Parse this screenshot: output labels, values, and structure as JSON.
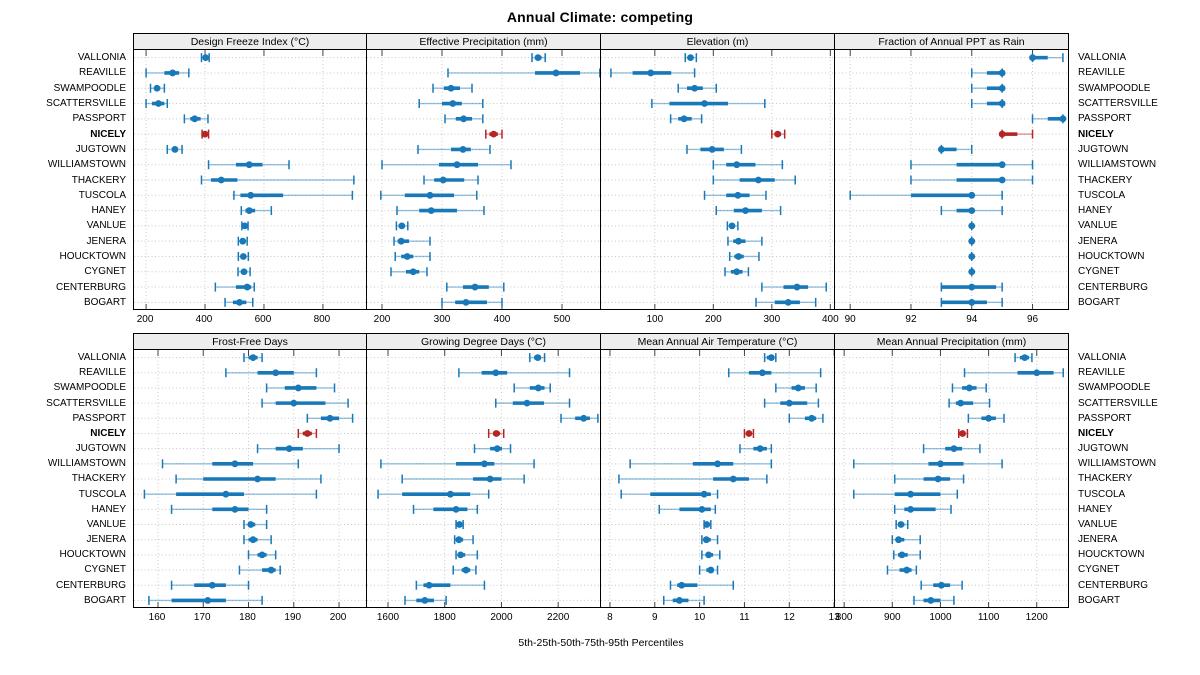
{
  "chart_data": {
    "type": "dotplot-trellis",
    "title": "Annual Climate: competing",
    "xlabel": "5th-25th-50th-75th-95th Percentiles",
    "percentiles": [
      "5th",
      "25th",
      "50th",
      "75th",
      "95th"
    ],
    "legend_position": "none",
    "grid_style": "dotted",
    "sites": [
      "VALLONIA",
      "REAVILLE",
      "SWAMPOODLE",
      "SCATTERSVILLE",
      "PASSPORT",
      "NICELY",
      "JUGTOWN",
      "WILLIAMSTOWN",
      "THACKERY",
      "TUSCOLA",
      "HANEY",
      "VANLUE",
      "JENERA",
      "HOUCKTOWN",
      "CYGNET",
      "CENTERBURG",
      "BOGART"
    ],
    "highlight_site": "NICELY",
    "colors": {
      "series": "#1878b8",
      "series_light_alpha": 0.45,
      "highlight": "#b52525",
      "grid": "#c9c9c9",
      "strip_bg": "#ededed",
      "border": "#000000",
      "tick": "#444444"
    },
    "panels": [
      {
        "title": "Design Freeze Index (°C)",
        "row": 0,
        "col": 0,
        "xlim": [
          159,
          953
        ],
        "ticks": [
          200,
          400,
          600,
          800
        ],
        "values": [
          [
            388,
            396,
            402,
            408,
            414
          ],
          [
            200,
            262,
            290,
            312,
            345
          ],
          [
            215,
            228,
            237,
            248,
            262
          ],
          [
            200,
            220,
            242,
            262,
            272
          ],
          [
            330,
            350,
            365,
            385,
            410
          ],
          [
            390,
            395,
            400,
            406,
            412
          ],
          [
            272,
            287,
            298,
            308,
            322
          ],
          [
            412,
            505,
            550,
            595,
            685
          ],
          [
            388,
            420,
            455,
            510,
            905
          ],
          [
            498,
            520,
            555,
            665,
            900
          ],
          [
            523,
            537,
            550,
            570,
            625
          ],
          [
            525,
            530,
            535,
            540,
            546
          ],
          [
            513,
            520,
            528,
            536,
            543
          ],
          [
            513,
            521,
            530,
            539,
            547
          ],
          [
            512,
            522,
            532,
            543,
            553
          ],
          [
            435,
            505,
            543,
            557,
            567
          ],
          [
            468,
            495,
            517,
            540,
            562
          ]
        ]
      },
      {
        "title": "Effective Precipitation (mm)",
        "row": 0,
        "col": 1,
        "xlim": [
          175,
          565
        ],
        "ticks": [
          200,
          300,
          400,
          500
        ],
        "values": [
          [
            450,
            455,
            460,
            466,
            472
          ],
          [
            310,
            455,
            490,
            530,
            563
          ],
          [
            285,
            303,
            315,
            330,
            350
          ],
          [
            262,
            300,
            318,
            333,
            368
          ],
          [
            305,
            323,
            336,
            350,
            368
          ],
          [
            373,
            379,
            386,
            393,
            400
          ],
          [
            260,
            315,
            335,
            348,
            380
          ],
          [
            200,
            295,
            325,
            360,
            415
          ],
          [
            270,
            287,
            302,
            337,
            360
          ],
          [
            198,
            238,
            280,
            320,
            358
          ],
          [
            225,
            262,
            282,
            325,
            370
          ],
          [
            224,
            228,
            233,
            238,
            243
          ],
          [
            220,
            226,
            232,
            245,
            280
          ],
          [
            222,
            232,
            242,
            252,
            280
          ],
          [
            215,
            240,
            252,
            262,
            275
          ],
          [
            308,
            335,
            355,
            378,
            403
          ],
          [
            300,
            322,
            340,
            375,
            400
          ]
        ]
      },
      {
        "title": "Elevation (m)",
        "row": 0,
        "col": 2,
        "xlim": [
          8,
          408
        ],
        "ticks": [
          100,
          200,
          300,
          400
        ],
        "values": [
          [
            152,
            156,
            161,
            166,
            171
          ],
          [
            25,
            62,
            93,
            128,
            168
          ],
          [
            140,
            155,
            168,
            182,
            205
          ],
          [
            95,
            125,
            185,
            225,
            288
          ],
          [
            127,
            140,
            150,
            163,
            180
          ],
          [
            300,
            305,
            310,
            316,
            322
          ],
          [
            155,
            178,
            198,
            218,
            248
          ],
          [
            200,
            222,
            240,
            272,
            318
          ],
          [
            200,
            245,
            277,
            305,
            340
          ],
          [
            185,
            222,
            242,
            262,
            290
          ],
          [
            205,
            235,
            255,
            283,
            315
          ],
          [
            224,
            228,
            232,
            237,
            242
          ],
          [
            225,
            234,
            243,
            255,
            283
          ],
          [
            228,
            236,
            243,
            252,
            278
          ],
          [
            220,
            230,
            240,
            250,
            260
          ],
          [
            283,
            320,
            343,
            362,
            393
          ],
          [
            273,
            305,
            328,
            348,
            375
          ]
        ]
      },
      {
        "title": "Fraction of Annual PPT as Rain",
        "row": 0,
        "col": 3,
        "xlim": [
          89.5,
          97.2
        ],
        "ticks": [
          90,
          92,
          94,
          96
        ],
        "values": [
          [
            96,
            96,
            96,
            96.5,
            97
          ],
          [
            94,
            94.5,
            95,
            95,
            95
          ],
          [
            94,
            94.5,
            95,
            95,
            95
          ],
          [
            94,
            94.5,
            95,
            95,
            95
          ],
          [
            96,
            96.5,
            97,
            97,
            97
          ],
          [
            95,
            95,
            95,
            95.5,
            96
          ],
          [
            93,
            93,
            93,
            93.5,
            94
          ],
          [
            92,
            93.5,
            95,
            95,
            96
          ],
          [
            92,
            93.5,
            95,
            95,
            96
          ],
          [
            90,
            92,
            94,
            94,
            95
          ],
          [
            93,
            93.5,
            94,
            94,
            95
          ],
          [
            94,
            94,
            94,
            94,
            94
          ],
          [
            94,
            94,
            94,
            94,
            94
          ],
          [
            94,
            94,
            94,
            94,
            94
          ],
          [
            94,
            94,
            94,
            94,
            94
          ],
          [
            93,
            93,
            94,
            94.8,
            95
          ],
          [
            93,
            93,
            94,
            94.5,
            95
          ]
        ]
      },
      {
        "title": "Frost-Free Days",
        "row": 1,
        "col": 0,
        "xlim": [
          154.7,
          206.4
        ],
        "ticks": [
          160,
          170,
          180,
          190,
          200
        ],
        "values": [
          [
            179,
            180,
            181,
            182,
            183
          ],
          [
            175,
            182,
            186,
            190,
            195
          ],
          [
            184,
            188,
            191,
            195,
            199
          ],
          [
            183,
            186,
            190,
            197,
            202
          ],
          [
            193,
            196,
            198,
            200,
            203
          ],
          [
            191,
            192,
            193,
            194,
            195
          ],
          [
            182,
            186,
            189,
            192,
            200
          ],
          [
            161,
            172,
            177,
            181,
            191
          ],
          [
            164,
            170,
            182,
            186,
            196
          ],
          [
            157,
            164,
            175,
            179,
            195
          ],
          [
            163,
            172,
            177,
            180,
            184
          ],
          [
            179,
            180,
            180.5,
            181.5,
            184
          ],
          [
            179,
            180,
            181,
            182,
            185
          ],
          [
            180,
            182,
            183,
            184,
            186
          ],
          [
            178,
            183,
            185,
            186,
            187
          ],
          [
            163,
            168,
            172,
            175,
            180
          ],
          [
            158,
            163,
            171,
            175,
            183
          ]
        ]
      },
      {
        "title": "Growing Degree Days (°C)",
        "row": 1,
        "col": 1,
        "xlim": [
          1526,
          2351
        ],
        "ticks": [
          1600,
          1800,
          2000,
          2200
        ],
        "values": [
          [
            2100,
            2115,
            2128,
            2140,
            2152
          ],
          [
            1850,
            1930,
            1980,
            2020,
            2240
          ],
          [
            2045,
            2100,
            2130,
            2152,
            2172
          ],
          [
            1980,
            2040,
            2090,
            2150,
            2240
          ],
          [
            2210,
            2260,
            2290,
            2312,
            2340
          ],
          [
            1955,
            1970,
            1982,
            1995,
            2008
          ],
          [
            1905,
            1960,
            1985,
            2002,
            2032
          ],
          [
            1575,
            1840,
            1940,
            1975,
            2115
          ],
          [
            1650,
            1900,
            1960,
            2000,
            2080
          ],
          [
            1565,
            1650,
            1820,
            1890,
            1955
          ],
          [
            1690,
            1760,
            1840,
            1880,
            1915
          ],
          [
            1840,
            1846,
            1852,
            1858,
            1865
          ],
          [
            1835,
            1842,
            1850,
            1865,
            1900
          ],
          [
            1840,
            1848,
            1856,
            1872,
            1915
          ],
          [
            1830,
            1860,
            1875,
            1890,
            1910
          ],
          [
            1700,
            1725,
            1745,
            1820,
            1940
          ],
          [
            1660,
            1700,
            1730,
            1762,
            1805
          ]
        ]
      },
      {
        "title": "Mean Annual Air Temperature (°C)",
        "row": 1,
        "col": 2,
        "xlim": [
          7.8,
          13.02
        ],
        "ticks": [
          8,
          9,
          10,
          11,
          12,
          13
        ],
        "values": [
          [
            11.45,
            11.5,
            11.6,
            11.65,
            11.7
          ],
          [
            10.65,
            11.1,
            11.4,
            11.6,
            12.7
          ],
          [
            11.7,
            12.05,
            12.2,
            12.35,
            12.6
          ],
          [
            11.45,
            11.8,
            12.0,
            12.4,
            12.65
          ],
          [
            12.0,
            12.35,
            12.5,
            12.6,
            12.75
          ],
          [
            11.0,
            11.05,
            11.1,
            11.15,
            11.2
          ],
          [
            10.9,
            11.2,
            11.35,
            11.5,
            11.6
          ],
          [
            8.45,
            9.85,
            10.4,
            10.75,
            11.6
          ],
          [
            8.2,
            10.3,
            10.75,
            11.1,
            11.5
          ],
          [
            8.25,
            8.9,
            10.1,
            10.25,
            10.4
          ],
          [
            9.1,
            9.55,
            10.05,
            10.25,
            10.35
          ],
          [
            10.1,
            10.12,
            10.16,
            10.2,
            10.25
          ],
          [
            10.05,
            10.1,
            10.15,
            10.25,
            10.4
          ],
          [
            10.05,
            10.15,
            10.2,
            10.3,
            10.45
          ],
          [
            10.0,
            10.15,
            10.25,
            10.3,
            10.4
          ],
          [
            9.35,
            9.5,
            9.6,
            9.95,
            10.75
          ],
          [
            9.2,
            9.4,
            9.55,
            9.75,
            10.1
          ]
        ]
      },
      {
        "title": "Mean Annual Precipitation (mm)",
        "row": 1,
        "col": 3,
        "xlim": [
          781,
          1267
        ],
        "ticks": [
          800,
          900,
          1000,
          1100,
          1200
        ],
        "values": [
          [
            1155,
            1165,
            1175,
            1184,
            1190
          ],
          [
            1050,
            1160,
            1200,
            1235,
            1255
          ],
          [
            1025,
            1045,
            1060,
            1075,
            1095
          ],
          [
            1018,
            1032,
            1042,
            1068,
            1102
          ],
          [
            1058,
            1085,
            1100,
            1115,
            1132
          ],
          [
            1038,
            1042,
            1046,
            1051,
            1056
          ],
          [
            965,
            1010,
            1028,
            1045,
            1082
          ],
          [
            820,
            975,
            1000,
            1048,
            1128
          ],
          [
            905,
            965,
            995,
            1020,
            1048
          ],
          [
            820,
            905,
            938,
            1000,
            1035
          ],
          [
            905,
            925,
            938,
            990,
            1022
          ],
          [
            908,
            913,
            918,
            925,
            932
          ],
          [
            900,
            907,
            913,
            925,
            958
          ],
          [
            903,
            912,
            920,
            932,
            958
          ],
          [
            890,
            915,
            930,
            940,
            950
          ],
          [
            960,
            985,
            1002,
            1020,
            1045
          ],
          [
            945,
            965,
            980,
            1000,
            1028
          ]
        ]
      }
    ]
  }
}
